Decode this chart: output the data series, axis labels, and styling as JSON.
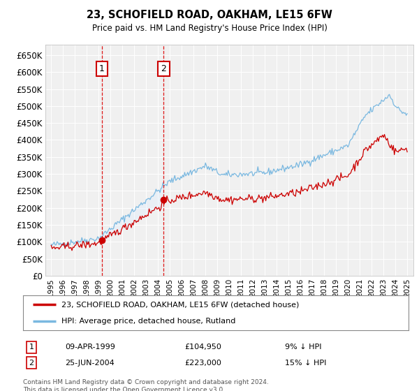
{
  "title": "23, SCHOFIELD ROAD, OAKHAM, LE15 6FW",
  "subtitle": "Price paid vs. HM Land Registry's House Price Index (HPI)",
  "ylim": [
    0,
    680000
  ],
  "yticks": [
    0,
    50000,
    100000,
    150000,
    200000,
    250000,
    300000,
    350000,
    400000,
    450000,
    500000,
    550000,
    600000,
    650000
  ],
  "ytick_labels": [
    "£0",
    "£50K",
    "£100K",
    "£150K",
    "£200K",
    "£250K",
    "£300K",
    "£350K",
    "£400K",
    "£450K",
    "£500K",
    "£550K",
    "£600K",
    "£650K"
  ],
  "hpi_color": "#7ab8e0",
  "price_color": "#cc0000",
  "shade_color": "#ddeeff",
  "transaction1": {
    "date_num": 1999.27,
    "price": 104950,
    "label": "1",
    "hpi_pct": "9% ↓ HPI",
    "date_str": "09-APR-1999",
    "price_str": "£104,950"
  },
  "transaction2": {
    "date_num": 2004.48,
    "price": 223000,
    "label": "2",
    "hpi_pct": "15% ↓ HPI",
    "date_str": "25-JUN-2004",
    "price_str": "£223,000"
  },
  "legend_label_price": "23, SCHOFIELD ROAD, OAKHAM, LE15 6FW (detached house)",
  "legend_label_hpi": "HPI: Average price, detached house, Rutland",
  "footnote": "Contains HM Land Registry data © Crown copyright and database right 2024.\nThis data is licensed under the Open Government Licence v3.0.",
  "background_color": "#ffffff",
  "plot_bg_color": "#f0f0f0",
  "grid_color": "#ffffff"
}
